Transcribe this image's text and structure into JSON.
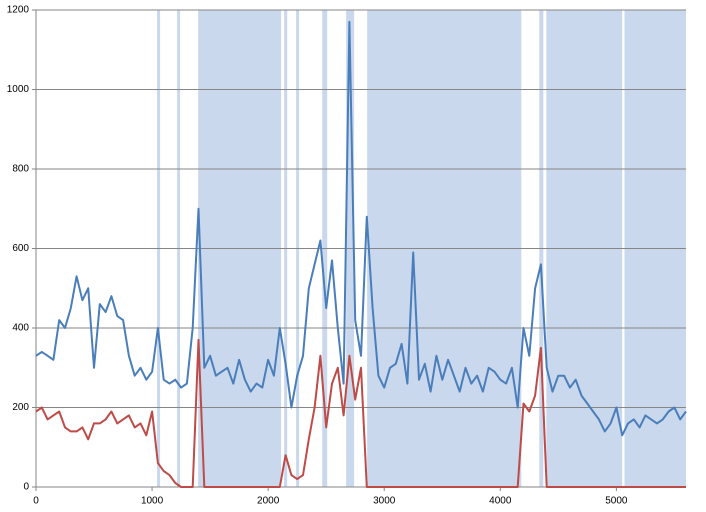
{
  "chart_data": {
    "type": "line",
    "x": [
      0,
      50,
      100,
      150,
      200,
      250,
      300,
      350,
      400,
      450,
      500,
      550,
      600,
      650,
      700,
      750,
      800,
      850,
      900,
      950,
      1000,
      1050,
      1100,
      1150,
      1200,
      1250,
      1300,
      1350,
      1400,
      1450,
      1500,
      1550,
      1600,
      1650,
      1700,
      1750,
      1800,
      1850,
      1900,
      1950,
      2000,
      2050,
      2100,
      2150,
      2200,
      2250,
      2300,
      2350,
      2400,
      2450,
      2500,
      2550,
      2600,
      2650,
      2700,
      2750,
      2800,
      2850,
      2900,
      2950,
      3000,
      3050,
      3100,
      3150,
      3200,
      3250,
      3300,
      3350,
      3400,
      3450,
      3500,
      3550,
      3600,
      3650,
      3700,
      3750,
      3800,
      3850,
      3900,
      3950,
      4000,
      4050,
      4100,
      4150,
      4200,
      4250,
      4300,
      4350,
      4400,
      4450,
      4500,
      4550,
      4600,
      4650,
      4700,
      4750,
      4800,
      4850,
      4900,
      4950,
      5000,
      5050,
      5100,
      5150,
      5200,
      5250,
      5300,
      5350,
      5400,
      5450,
      5500,
      5550,
      5600
    ],
    "series": [
      {
        "color": "#4a7ebb",
        "values": [
          330,
          340,
          330,
          320,
          420,
          400,
          450,
          530,
          470,
          500,
          300,
          460,
          440,
          480,
          430,
          420,
          330,
          280,
          300,
          270,
          290,
          400,
          270,
          260,
          270,
          250,
          260,
          400,
          700,
          300,
          330,
          280,
          290,
          300,
          260,
          320,
          270,
          240,
          260,
          250,
          320,
          280,
          400,
          310,
          200,
          280,
          330,
          500,
          560,
          620,
          450,
          570,
          400,
          260,
          1170,
          420,
          330,
          680,
          450,
          280,
          250,
          300,
          310,
          360,
          260,
          590,
          270,
          310,
          240,
          330,
          270,
          320,
          280,
          240,
          300,
          260,
          280,
          240,
          300,
          290,
          270,
          260,
          300,
          200,
          400,
          330,
          500,
          560,
          300,
          240,
          280,
          280,
          250,
          270,
          230,
          210,
          190,
          170,
          140,
          160,
          200,
          130,
          160,
          170,
          150,
          180,
          170,
          160,
          170,
          190,
          200,
          170,
          190
        ]
      },
      {
        "color": "#be4b48",
        "values": [
          190,
          200,
          170,
          180,
          190,
          150,
          140,
          140,
          150,
          120,
          160,
          160,
          170,
          190,
          160,
          170,
          180,
          150,
          160,
          130,
          190,
          60,
          40,
          30,
          10,
          0,
          0,
          0,
          370,
          0,
          0,
          0,
          0,
          0,
          0,
          0,
          0,
          0,
          0,
          0,
          0,
          0,
          0,
          80,
          30,
          20,
          30,
          120,
          200,
          330,
          150,
          260,
          300,
          180,
          330,
          220,
          300,
          0,
          0,
          0,
          0,
          0,
          0,
          0,
          0,
          0,
          0,
          0,
          0,
          0,
          0,
          0,
          0,
          0,
          0,
          0,
          0,
          0,
          0,
          0,
          0,
          0,
          0,
          0,
          210,
          190,
          230,
          350,
          0,
          0,
          0,
          0,
          0,
          0,
          0,
          0,
          0,
          0,
          0,
          0,
          0,
          0,
          0,
          0,
          0,
          0,
          0,
          0,
          0,
          0,
          0,
          0,
          0
        ]
      }
    ],
    "shaded_regions": [
      [
        1043,
        1069
      ],
      [
        1216,
        1241
      ],
      [
        1397,
        2112
      ],
      [
        2138,
        2164
      ],
      [
        2241,
        2267
      ],
      [
        2466,
        2509
      ],
      [
        2672,
        2741
      ],
      [
        2853,
        4181
      ],
      [
        4336,
        4371
      ],
      [
        4397,
        5050
      ],
      [
        5070,
        5600
      ]
    ],
    "shade_color": "#c9d8ec",
    "xlim": [
      0,
      5600
    ],
    "xticks": [
      0,
      1000,
      2000,
      3000,
      4000,
      5000
    ],
    "ylim": [
      0,
      1200
    ],
    "yticks": [
      0,
      200,
      400,
      600,
      800,
      1000,
      1200
    ],
    "grid": true
  }
}
